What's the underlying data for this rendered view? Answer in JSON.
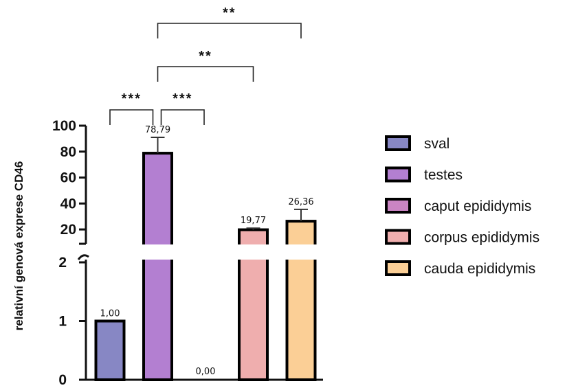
{
  "chart_data": {
    "type": "bar",
    "title": "",
    "xlabel": "",
    "ylabel": "relativní genová exprese CD46",
    "axis_break": true,
    "ylim_lower": [
      0,
      2
    ],
    "ylim_upper": [
      10,
      100
    ],
    "yticks_lower": [
      "0",
      "1",
      "2"
    ],
    "yticks_upper": [
      "20",
      "40",
      "60",
      "80",
      "100"
    ],
    "categories": [
      "sval",
      "testes",
      "caput epididymis",
      "corpus epididymis",
      "cauda epididymis"
    ],
    "values": [
      1.0,
      78.79,
      0.0,
      19.77,
      26.36
    ],
    "error_upper": [
      null,
      91.0,
      null,
      21.0,
      35.5
    ],
    "value_labels": [
      "1,00",
      "78,79",
      "0,00",
      "19,77",
      "26,36"
    ],
    "colors": [
      "#8787c4",
      "#b37fd1",
      "#ca85c3",
      "#efaeae",
      "#fbcf96"
    ],
    "legend_position": "right",
    "grid": false,
    "significance": [
      {
        "from": 0,
        "to": 1,
        "label": "***"
      },
      {
        "from": 1,
        "to": 2,
        "label": "***"
      },
      {
        "from": 1,
        "to": 3,
        "label": "**"
      },
      {
        "from": 1,
        "to": 4,
        "label": "**"
      }
    ]
  }
}
